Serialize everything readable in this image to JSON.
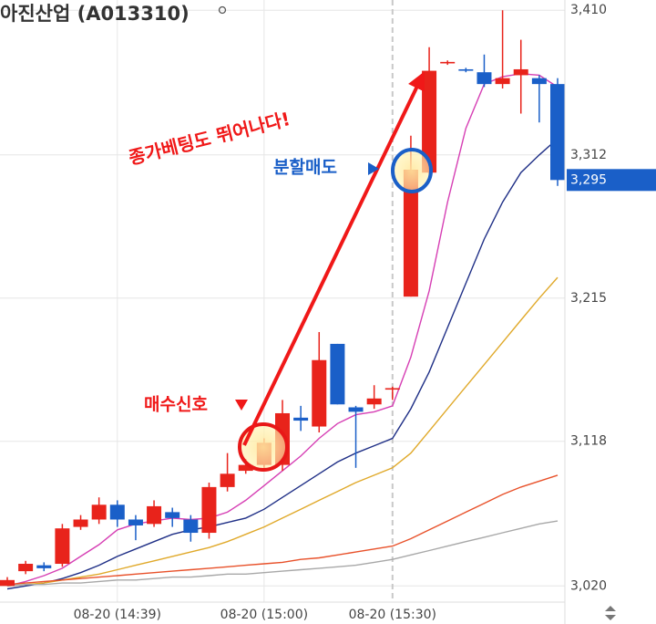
{
  "title": "아진산업 (A013310)",
  "annotations": {
    "headline": "종가베팅도 뛰어나다!",
    "sell": "분할매도",
    "buy": "매수신호"
  },
  "chart_data": {
    "type": "candlestick",
    "categories": [
      null,
      null,
      null,
      null,
      null,
      null,
      "08-20 (14:39)",
      null,
      null,
      null,
      null,
      null,
      null,
      null,
      "08-20 (15:00)",
      null,
      null,
      null,
      null,
      null,
      null,
      "08-20 (15:30)",
      null,
      null,
      null,
      null,
      null,
      null,
      null,
      null,
      null
    ],
    "open": [
      3020,
      3030,
      3034,
      3035,
      3060,
      3065,
      3075,
      3065,
      3062,
      3070,
      3065,
      3056,
      3087,
      3098,
      3102,
      3102,
      3134,
      3128,
      3184,
      3141,
      3143,
      3153,
      3216,
      3300,
      3374,
      3370,
      3368,
      3360,
      3366,
      3364,
      3360
    ],
    "high": [
      3026,
      3037,
      3036,
      3062,
      3068,
      3080,
      3078,
      3068,
      3078,
      3073,
      3068,
      3090,
      3110,
      3106,
      3120,
      3146,
      3142,
      3192,
      3184,
      3142,
      3156,
      3155,
      3325,
      3385,
      3376,
      3371,
      3380,
      3410,
      3390,
      3366,
      3364
    ],
    "low": [
      3020,
      3028,
      3030,
      3033,
      3058,
      3062,
      3060,
      3051,
      3060,
      3060,
      3050,
      3052,
      3084,
      3096,
      3100,
      3098,
      3125,
      3124,
      3143,
      3100,
      3140,
      3146,
      3216,
      3298,
      3373,
      3368,
      3358,
      3357,
      3340,
      3334,
      3291
    ],
    "close": [
      3024,
      3035,
      3032,
      3059,
      3065,
      3075,
      3065,
      3061,
      3074,
      3066,
      3056,
      3087,
      3096,
      3102,
      3117,
      3137,
      3132,
      3173,
      3143,
      3138,
      3147,
      3154,
      3302,
      3369,
      3375,
      3369,
      3360,
      3364,
      3370,
      3360,
      3295
    ],
    "up_color": "#e8231b",
    "down_color": "#1a5fc8",
    "series": [
      {
        "color": "#d63fb4",
        "values": [
          3020,
          3023,
          3027,
          3032,
          3040,
          3048,
          3058,
          3062,
          3064,
          3066,
          3065,
          3066,
          3070,
          3078,
          3088,
          3098,
          3108,
          3120,
          3130,
          3136,
          3138,
          3142,
          3175,
          3220,
          3280,
          3330,
          3360,
          3365,
          3367,
          3366,
          3358
        ]
      },
      {
        "color": "#1f2f86",
        "values": [
          3018,
          3020,
          3022,
          3025,
          3029,
          3034,
          3040,
          3045,
          3050,
          3055,
          3058,
          3060,
          3063,
          3066,
          3072,
          3080,
          3088,
          3096,
          3104,
          3110,
          3115,
          3120,
          3140,
          3165,
          3195,
          3225,
          3255,
          3280,
          3300,
          3312,
          3323
        ]
      },
      {
        "color": "#e0a92a",
        "values": [
          3020,
          3021,
          3022,
          3024,
          3026,
          3028,
          3031,
          3034,
          3037,
          3040,
          3043,
          3046,
          3050,
          3055,
          3060,
          3066,
          3072,
          3078,
          3084,
          3090,
          3095,
          3100,
          3110,
          3125,
          3140,
          3155,
          3170,
          3185,
          3200,
          3215,
          3229
        ]
      },
      {
        "color": "#e8512a",
        "values": [
          3021,
          3022,
          3023,
          3024,
          3025,
          3026,
          3027,
          3028,
          3029,
          3030,
          3031,
          3032,
          3033,
          3034,
          3035,
          3036,
          3038,
          3039,
          3041,
          3043,
          3045,
          3047,
          3052,
          3058,
          3064,
          3070,
          3076,
          3082,
          3087,
          3091,
          3095
        ]
      },
      {
        "color": "#a8a8a8",
        "values": [
          3020,
          3021,
          3021,
          3022,
          3022,
          3023,
          3024,
          3024,
          3025,
          3026,
          3026,
          3027,
          3028,
          3028,
          3029,
          3030,
          3031,
          3032,
          3033,
          3034,
          3036,
          3038,
          3041,
          3044,
          3047,
          3050,
          3053,
          3056,
          3059,
          3062,
          3064
        ]
      }
    ],
    "ylim": [
      3014,
      3412
    ],
    "yticks": [
      {
        "value": 3020,
        "label": "3,020"
      },
      {
        "value": 3118,
        "label": "3,118"
      },
      {
        "value": 3215,
        "label": "3,215"
      },
      {
        "value": 3312,
        "label": "3,312"
      },
      {
        "value": 3410,
        "label": "3,410"
      }
    ],
    "current_price": {
      "value": 3295,
      "label": "3,295"
    },
    "grid": true
  }
}
